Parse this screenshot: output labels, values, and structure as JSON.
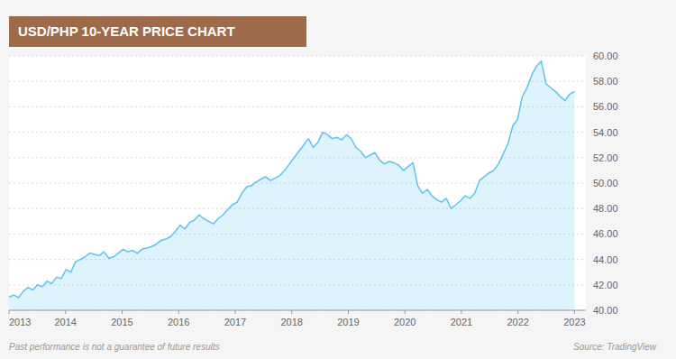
{
  "chart_data": {
    "type": "area",
    "title": "USD/PHP 10-YEAR PRICE CHART",
    "annotations": [
      "Past performance is not a guarantee of future results",
      "Source: TradingView"
    ],
    "x": [
      2013.0,
      2013.084,
      2013.1681,
      2013.2521,
      2013.3361,
      2013.4202,
      2013.5042,
      2013.5882,
      2013.6723,
      2013.7563,
      2013.8403,
      2013.9244,
      2014.0084,
      2014.0924,
      2014.1765,
      2014.2605,
      2014.3445,
      2014.4286,
      2014.5126,
      2014.5966,
      2014.6807,
      2014.7647,
      2014.8487,
      2014.9328,
      2015.0168,
      2015.1008,
      2015.1849,
      2015.2689,
      2015.3529,
      2015.437,
      2015.521,
      2015.605,
      2015.6891,
      2015.7731,
      2015.8571,
      2015.9412,
      2016.0252,
      2016.1092,
      2016.1933,
      2016.2773,
      2016.3613,
      2016.4454,
      2016.5294,
      2016.6134,
      2016.6975,
      2016.7815,
      2016.8655,
      2016.9496,
      2017.0336,
      2017.1176,
      2017.2017,
      2017.2857,
      2017.3697,
      2017.4538,
      2017.5378,
      2017.6218,
      2017.7059,
      2017.7899,
      2017.8739,
      2017.958,
      2018.042,
      2018.1261,
      2018.2101,
      2018.2941,
      2018.3782,
      2018.4622,
      2018.5462,
      2018.6303,
      2018.7143,
      2018.7983,
      2018.8824,
      2018.9664,
      2019.0504,
      2019.1345,
      2019.2185,
      2019.3025,
      2019.3866,
      2019.4706,
      2019.5546,
      2019.6387,
      2019.7227,
      2019.8067,
      2019.8908,
      2019.9748,
      2020.0588,
      2020.1429,
      2020.2269,
      2020.3109,
      2020.395,
      2020.479,
      2020.563,
      2020.6471,
      2020.7311,
      2020.8151,
      2020.8992,
      2020.9832,
      2021.0672,
      2021.1513,
      2021.2353,
      2021.3193,
      2021.4034,
      2021.4874,
      2021.5714,
      2021.6555,
      2021.7395,
      2021.8235,
      2021.9076,
      2021.9916,
      2022.0756,
      2022.1597,
      2022.2437,
      2022.3277,
      2022.4118,
      2022.4958,
      2022.5798,
      2022.6639,
      2022.7479,
      2022.8319,
      2022.916,
      2023.0
    ],
    "values": [
      41.05,
      41.2,
      41.0,
      41.5,
      41.8,
      41.6,
      42.0,
      41.85,
      42.3,
      42.1,
      42.6,
      42.5,
      43.2,
      43.0,
      43.8,
      44.0,
      44.2,
      44.5,
      44.4,
      44.3,
      44.6,
      44.1,
      44.2,
      44.5,
      44.8,
      44.6,
      44.7,
      44.5,
      44.8,
      44.9,
      45.0,
      45.2,
      45.5,
      45.6,
      45.8,
      46.2,
      46.7,
      46.4,
      46.9,
      47.1,
      47.5,
      47.2,
      47.0,
      46.8,
      47.2,
      47.5,
      47.9,
      48.3,
      48.5,
      49.2,
      49.7,
      49.8,
      50.1,
      50.3,
      50.5,
      50.2,
      50.4,
      50.6,
      51.0,
      51.5,
      52.0,
      52.5,
      53.0,
      53.5,
      52.8,
      53.2,
      54.0,
      53.8,
      53.5,
      53.6,
      53.4,
      53.8,
      53.5,
      52.8,
      52.5,
      52.0,
      52.2,
      52.4,
      51.8,
      51.5,
      51.7,
      51.6,
      51.4,
      51.0,
      51.3,
      51.6,
      49.8,
      49.2,
      49.5,
      49.0,
      48.7,
      48.5,
      48.8,
      48.0,
      48.3,
      48.6,
      49.0,
      48.8,
      49.2,
      50.2,
      50.5,
      50.8,
      51.0,
      51.5,
      52.3,
      53.1,
      54.5,
      55.0,
      56.8,
      57.5,
      58.5,
      59.2,
      59.6,
      57.8,
      57.5,
      57.2,
      56.8,
      56.5,
      57.0,
      57.2
    ],
    "color": "#5BC4F0",
    "xlim": [
      2013.0,
      2023.2
    ],
    "xticks": [
      2013,
      2014,
      2015,
      2016,
      2017,
      2018,
      2019,
      2020,
      2021,
      2022,
      2023
    ],
    "ylim": [
      40.0,
      60.0
    ],
    "yticks": [
      {
        "value": 40,
        "label": "40.00"
      },
      {
        "value": 42,
        "label": "42.00"
      },
      {
        "value": 44,
        "label": "44.00"
      },
      {
        "value": 46,
        "label": "46.00"
      },
      {
        "value": 48,
        "label": "48.00"
      },
      {
        "value": 50,
        "label": "50.00"
      },
      {
        "value": 52,
        "label": "52.00"
      },
      {
        "value": 54,
        "label": "54.00"
      },
      {
        "value": 56,
        "label": "56.00"
      },
      {
        "value": 58,
        "label": "58.00"
      },
      {
        "value": 60,
        "label": "60.00"
      }
    ],
    "grid": true
  }
}
